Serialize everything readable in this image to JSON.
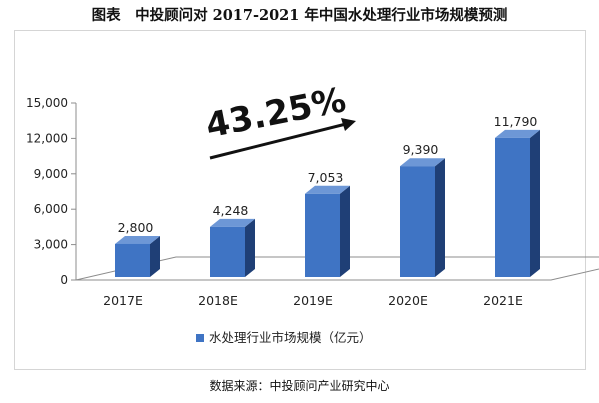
{
  "title": "图表　中投顾问对 2017-2021 年中国水处理行业市场规模预测",
  "source": "数据来源：中投顾问产业研究中心",
  "growth_label": "43.25%",
  "colors": {
    "bar_front": "#3f74c4",
    "bar_side": "#1f3f76",
    "bar_top": "#6d97d6"
  },
  "chart_data": {
    "type": "bar",
    "categories": [
      "2017E",
      "2018E",
      "2019E",
      "2020E",
      "2021E"
    ],
    "series": [
      {
        "name": "水处理行业市场规模（亿元）",
        "values": [
          2800,
          4248,
          7053,
          9390,
          11790
        ]
      }
    ],
    "data_labels": [
      "2,800",
      "4,248",
      "7,053",
      "9,390",
      "11,790"
    ],
    "ylim": [
      0,
      15000
    ],
    "y_ticks": [
      "0",
      "3,000",
      "6,000",
      "9,000",
      "12,000",
      "15,000"
    ],
    "grid": false,
    "legend_position": "bottom",
    "xlabel": "",
    "ylabel": ""
  }
}
